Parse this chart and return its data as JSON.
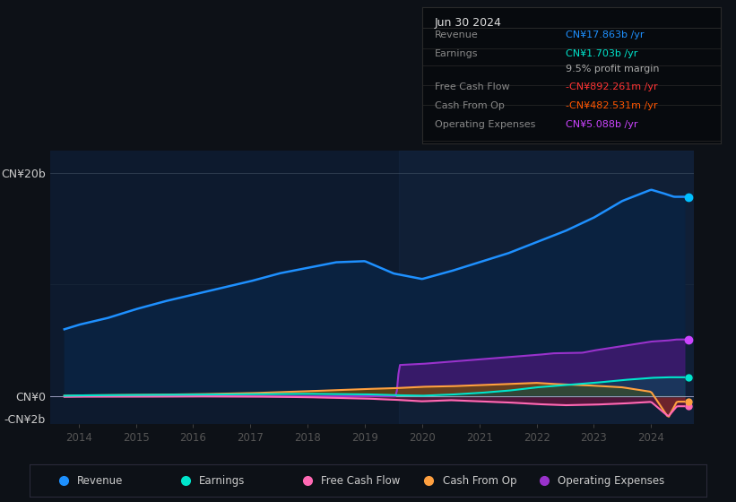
{
  "bg_color": "#0d1117",
  "plot_bg_color": "#0d1a2e",
  "title": "Jun 30 2024",
  "info_box_rows": [
    {
      "label": "Revenue",
      "value": "CN¥17.863b /yr",
      "value_color": "#1e90ff"
    },
    {
      "label": "Earnings",
      "value": "CN¥1.703b /yr",
      "value_color": "#00e5cc"
    },
    {
      "label": "",
      "value": "9.5% profit margin",
      "value_color": "#aaaaaa"
    },
    {
      "label": "Free Cash Flow",
      "value": "-CN¥892.261m /yr",
      "value_color": "#ff3333"
    },
    {
      "label": "Cash From Op",
      "value": "-CN¥482.531m /yr",
      "value_color": "#ff5500"
    },
    {
      "label": "Operating Expenses",
      "value": "CN¥5.088b /yr",
      "value_color": "#cc44ff"
    }
  ],
  "ylim": [
    -2500000000.0,
    22000000000.0
  ],
  "yticks": [
    -2000000000.0,
    0,
    20000000000.0
  ],
  "ytick_labels": [
    "-CN¥2b",
    "CN¥0",
    "CN¥20b"
  ],
  "xlim_start": 2013.5,
  "xlim_end": 2024.75,
  "xticks": [
    2014,
    2015,
    2016,
    2017,
    2018,
    2019,
    2020,
    2021,
    2022,
    2023,
    2024
  ],
  "highlight_x_start": 2019.6,
  "revenue_color": "#1e90ff",
  "revenue_fill": "#0a2240",
  "earnings_color": "#00e5cc",
  "fcf_color": "#ff69b4",
  "cfop_color": "#ffa040",
  "opex_color": "#9932cc",
  "opex_fill": "#3d1a6e",
  "earnings_fill": "#004444",
  "fcf_fill": "#8b2252",
  "cfop_fill": "#8b5a00",
  "legend_items": [
    {
      "label": "Revenue",
      "color": "#1e90ff"
    },
    {
      "label": "Earnings",
      "color": "#00e5cc"
    },
    {
      "label": "Free Cash Flow",
      "color": "#ff69b4"
    },
    {
      "label": "Cash From Op",
      "color": "#ffa040"
    },
    {
      "label": "Operating Expenses",
      "color": "#9932cc"
    }
  ]
}
